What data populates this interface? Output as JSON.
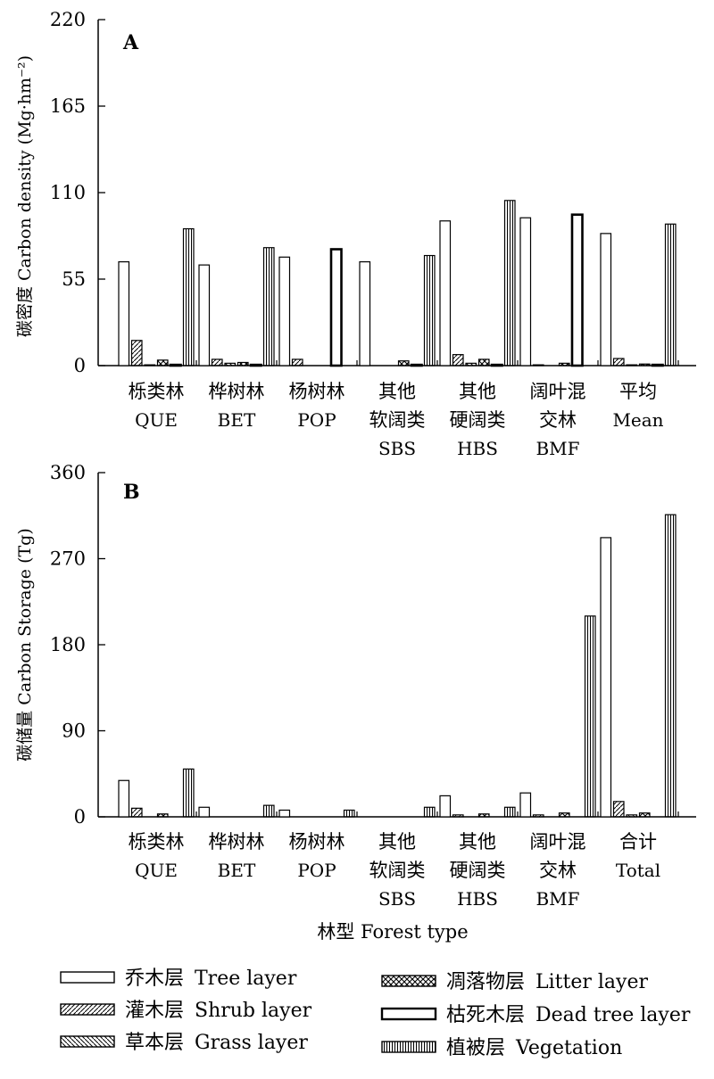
{
  "chart_data": [
    {
      "type": "bar",
      "panel_label": "A",
      "ylabel": "碳密度 Carbon density (Mg·hm⁻²)",
      "ylim": [
        0,
        220
      ],
      "yticks": [
        0,
        55,
        110,
        165,
        220
      ],
      "categories": [
        {
          "zh": [
            "栎类林"
          ],
          "en": "QUE"
        },
        {
          "zh": [
            "桦树林"
          ],
          "en": "BET"
        },
        {
          "zh": [
            "杨树林"
          ],
          "en": "POP"
        },
        {
          "zh": [
            "其他",
            "软阔类"
          ],
          "en": "SBS"
        },
        {
          "zh": [
            "其他",
            "硬阔类"
          ],
          "en": "HBS"
        },
        {
          "zh": [
            "阔叶混",
            "交林"
          ],
          "en": "BMF"
        },
        {
          "zh": [
            "平均"
          ],
          "en": "Mean"
        }
      ],
      "series": [
        {
          "name": "乔木层 Tree layer",
          "pattern": "blank",
          "values": [
            66,
            64,
            69,
            66,
            92,
            94,
            84
          ]
        },
        {
          "name": "灌木层 Shrub layer",
          "pattern": "hatch-right",
          "values": [
            16,
            4,
            4,
            0,
            7,
            0.5,
            4.5
          ]
        },
        {
          "name": "草本层 Grass layer",
          "pattern": "hatch-left",
          "values": [
            0.5,
            1.5,
            0,
            0,
            1.5,
            0,
            0.5
          ]
        },
        {
          "name": "凋落物层 Litter layer",
          "pattern": "cross",
          "values": [
            3.5,
            2,
            0,
            3,
            4,
            1.5,
            1
          ]
        },
        {
          "name": "枯死木层 Dead tree layer",
          "pattern": "thick-border",
          "values": [
            0.5,
            0.5,
            74,
            0.5,
            0.5,
            96,
            0.5
          ]
        },
        {
          "name": "植被层 Vegetation",
          "pattern": "vlines",
          "values": [
            87,
            75,
            0,
            70,
            105,
            0,
            90
          ]
        }
      ]
    },
    {
      "type": "bar",
      "panel_label": "B",
      "ylabel": "碳储量 Carbon Storage (Tg)",
      "xlabel": "林型 Forest type",
      "ylim": [
        0,
        360
      ],
      "yticks": [
        0,
        90,
        180,
        270,
        360
      ],
      "categories": [
        {
          "zh": [
            "栎类林"
          ],
          "en": "QUE"
        },
        {
          "zh": [
            "桦树林"
          ],
          "en": "BET"
        },
        {
          "zh": [
            "杨树林"
          ],
          "en": "POP"
        },
        {
          "zh": [
            "其他",
            "软阔类"
          ],
          "en": "SBS"
        },
        {
          "zh": [
            "其他",
            "硬阔类"
          ],
          "en": "HBS"
        },
        {
          "zh": [
            "阔叶混",
            "交林"
          ],
          "en": "BMF"
        },
        {
          "zh": [
            "合计"
          ],
          "en": "Total"
        }
      ],
      "series": [
        {
          "name": "乔木层 Tree layer",
          "pattern": "blank",
          "values": [
            38,
            10,
            7,
            0,
            22,
            25,
            292
          ]
        },
        {
          "name": "灌木层 Shrub layer",
          "pattern": "hatch-right",
          "values": [
            9,
            0,
            0,
            0,
            2,
            2,
            16
          ]
        },
        {
          "name": "草本层 Grass layer",
          "pattern": "hatch-left",
          "values": [
            0,
            0,
            0,
            0,
            0,
            0,
            2
          ]
        },
        {
          "name": "凋落物层 Litter layer",
          "pattern": "cross",
          "values": [
            3,
            0,
            0,
            0,
            3,
            4,
            4
          ]
        },
        {
          "name": "枯死木层 Dead tree layer",
          "pattern": "thick-border",
          "values": [
            0,
            0,
            0,
            0,
            0,
            0,
            0
          ]
        },
        {
          "name": "植被层 Vegetation",
          "pattern": "vlines",
          "values": [
            50,
            12,
            7,
            10,
            10,
            210,
            316
          ]
        }
      ]
    }
  ],
  "legend": [
    {
      "zh": "乔木层",
      "en": "Tree layer",
      "pattern": "blank"
    },
    {
      "zh": "灌木层",
      "en": "Shrub layer",
      "pattern": "hatch-right"
    },
    {
      "zh": "草本层",
      "en": "Grass layer",
      "pattern": "hatch-left"
    },
    {
      "zh": "凋落物层",
      "en": "Litter layer",
      "pattern": "cross"
    },
    {
      "zh": "枯死木层",
      "en": "Dead tree layer",
      "pattern": "thick-border"
    },
    {
      "zh": "植被层",
      "en": "Vegetation",
      "pattern": "vlines"
    }
  ],
  "colors": {
    "ink": "#000000",
    "background": "#ffffff"
  }
}
